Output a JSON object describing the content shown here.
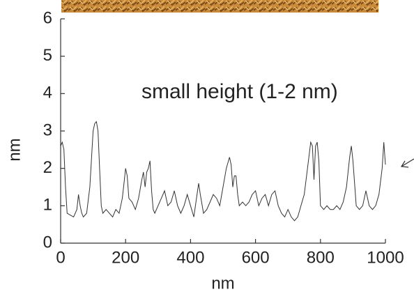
{
  "chart_data": {
    "type": "line",
    "annotation": "small height (1-2 nm)",
    "xlabel": "nm",
    "ylabel": "nm",
    "xlim": [
      0,
      1000
    ],
    "xticks": [
      0,
      200,
      400,
      600,
      800,
      1000
    ],
    "ylim": [
      0,
      6
    ],
    "yticks": [
      0,
      1,
      2,
      3,
      4,
      5,
      6
    ],
    "series": [
      {
        "color": "#333333",
        "x": [
          0,
          5,
          10,
          15,
          20,
          30,
          40,
          50,
          55,
          60,
          65,
          70,
          80,
          90,
          100,
          105,
          110,
          115,
          120,
          125,
          130,
          140,
          150,
          160,
          170,
          180,
          190,
          195,
          200,
          205,
          210,
          220,
          230,
          240,
          250,
          255,
          260,
          265,
          270,
          275,
          280,
          285,
          290,
          300,
          310,
          320,
          330,
          340,
          350,
          360,
          370,
          380,
          390,
          400,
          410,
          420,
          425,
          430,
          440,
          450,
          460,
          470,
          480,
          490,
          500,
          510,
          520,
          525,
          530,
          535,
          540,
          545,
          550,
          560,
          570,
          580,
          590,
          600,
          610,
          620,
          630,
          640,
          650,
          660,
          670,
          680,
          690,
          700,
          710,
          720,
          730,
          740,
          750,
          760,
          770,
          775,
          780,
          785,
          790,
          795,
          800,
          810,
          820,
          830,
          840,
          850,
          860,
          870,
          880,
          890,
          895,
          900,
          910,
          920,
          930,
          940,
          945,
          950,
          960,
          970,
          980,
          990,
          995,
          1000
        ],
        "values": [
          2.6,
          2.7,
          2.5,
          1.5,
          0.8,
          0.75,
          0.7,
          0.9,
          1.3,
          1.0,
          0.8,
          0.7,
          0.8,
          1.5,
          3.0,
          3.2,
          3.25,
          3.0,
          2.0,
          1.0,
          0.8,
          0.9,
          0.8,
          0.7,
          0.9,
          0.8,
          1.2,
          1.6,
          2.0,
          1.8,
          1.2,
          1.1,
          0.9,
          1.2,
          1.7,
          1.9,
          1.5,
          1.9,
          2.0,
          2.2,
          1.4,
          0.9,
          0.8,
          1.0,
          1.2,
          1.4,
          1.0,
          1.1,
          1.4,
          1.0,
          0.8,
          1.0,
          1.3,
          1.0,
          0.7,
          1.3,
          1.6,
          1.3,
          0.8,
          0.9,
          1.1,
          1.3,
          1.2,
          1.0,
          1.5,
          2.0,
          2.3,
          2.1,
          1.5,
          1.8,
          1.8,
          1.3,
          1.0,
          1.1,
          1.0,
          1.1,
          1.3,
          1.4,
          1.0,
          1.2,
          1.3,
          1.0,
          1.3,
          1.4,
          1.0,
          0.8,
          0.7,
          0.9,
          0.7,
          0.6,
          0.7,
          1.0,
          1.3,
          2.0,
          2.7,
          2.6,
          1.7,
          2.6,
          2.7,
          2.2,
          1.0,
          0.9,
          1.0,
          0.9,
          0.9,
          1.0,
          0.9,
          1.1,
          1.5,
          2.3,
          2.6,
          2.2,
          1.0,
          0.9,
          1.0,
          1.4,
          1.2,
          1.0,
          0.9,
          1.0,
          1.3,
          2.0,
          2.7,
          2.1
        ]
      }
    ]
  }
}
